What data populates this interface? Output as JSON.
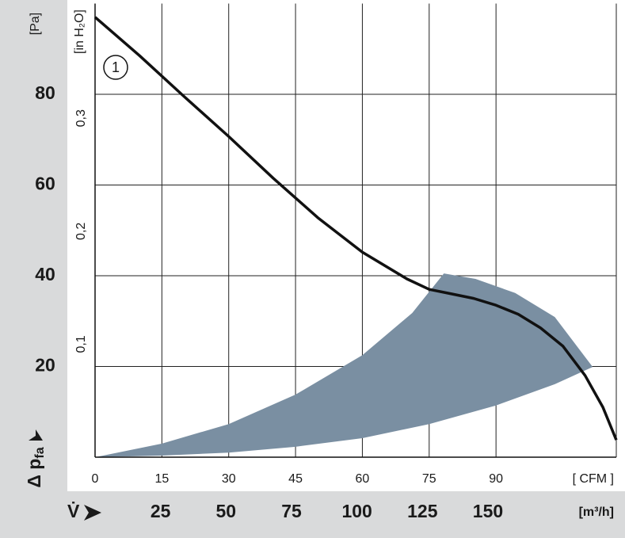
{
  "chart_data": {
    "type": "fan-curve",
    "ylabel": "[Pa]",
    "y2label": "[in H₂O]",
    "ylabel_bottom": {
      "text": "Δ p",
      "sub": "fa"
    },
    "xlabel": "[ CFM ]",
    "x2label": "[m³/h]",
    "x2symbol": "V̇",
    "curve_label": "1",
    "xlim": [
      0,
      117
    ],
    "xticks": [
      0,
      15,
      30,
      45,
      60,
      75,
      90
    ],
    "x2lim": [
      0,
      199
    ],
    "x2ticks": [
      25,
      50,
      75,
      100,
      125,
      150
    ],
    "ylim": [
      0,
      100
    ],
    "yticks": [
      20,
      40,
      60,
      80
    ],
    "y2lim": [
      0,
      0.4015
    ],
    "y2ticks": [
      {
        "value": 0.1,
        "label": "0,1"
      },
      {
        "value": 0.2,
        "label": "0,2"
      },
      {
        "value": 0.3,
        "label": "0,3"
      }
    ],
    "grid": true,
    "region": {
      "color": "#7a8fa2",
      "x": [
        0,
        15,
        30,
        45,
        60,
        71.2,
        78.3,
        85.4,
        94.3,
        103.2,
        111.7,
        103.2,
        90,
        75,
        60,
        45,
        30,
        15
      ],
      "values": [
        0,
        3,
        7.3,
        13.8,
        22.5,
        31.8,
        40.5,
        39.3,
        36.2,
        30.9,
        19.9,
        16.1,
        11.4,
        7.3,
        4.2,
        2.3,
        1,
        0.35
      ]
    },
    "series": [
      {
        "color": "#111111",
        "x": [
          0,
          10,
          20,
          30,
          40,
          50,
          60,
          70,
          75,
          80,
          85,
          90,
          95,
          100,
          105,
          110,
          114,
          117
        ],
        "values": [
          97,
          88.5,
          79.5,
          70.7,
          61.5,
          52.8,
          45.2,
          39.3,
          37,
          36,
          35,
          33.5,
          31.5,
          28.5,
          24.5,
          18,
          11,
          3.8
        ]
      }
    ]
  }
}
